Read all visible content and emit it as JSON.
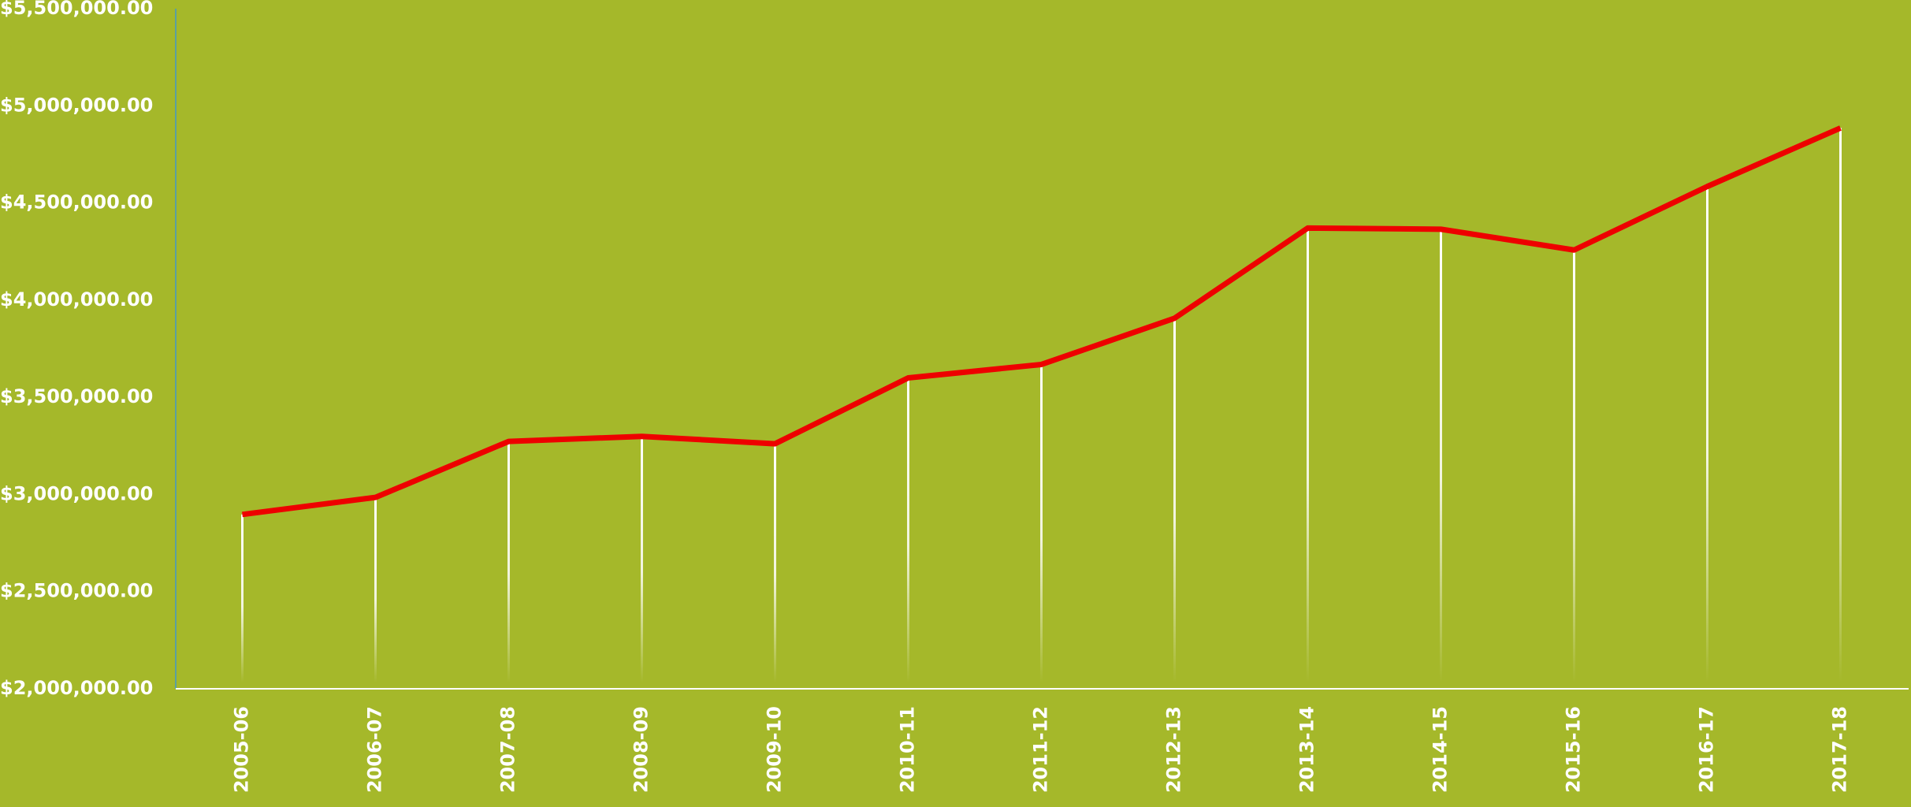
{
  "chart_data": {
    "type": "line",
    "categories": [
      "2005-06",
      "2006-07",
      "2007-08",
      "2008-09",
      "2009-10",
      "2010-11",
      "2011-12",
      "2012-13",
      "2013-14",
      "2014-15",
      "2015-16",
      "2016-17",
      "2017-18"
    ],
    "series": [
      {
        "color": "#ee0000",
        "values": [
          2897000,
          2985000,
          3273000,
          3299000,
          3261000,
          3600000,
          3669000,
          3907000,
          4371000,
          4365000,
          4258000,
          4585000,
          4886000
        ]
      }
    ],
    "ylim": [
      2000000,
      5500000
    ],
    "yticks": [
      {
        "value": 2000000,
        "label": "$2,000,000.00"
      },
      {
        "value": 2500000,
        "label": "$2,500,000.00"
      },
      {
        "value": 3000000,
        "label": "$3,000,000.00"
      },
      {
        "value": 3500000,
        "label": "$3,500,000.00"
      },
      {
        "value": 4000000,
        "label": "$4,000,000.00"
      },
      {
        "value": 4500000,
        "label": "$4,500,000.00"
      },
      {
        "value": 5000000,
        "label": "$5,000,000.00"
      },
      {
        "value": 5500000,
        "label": "$5,500,000.00"
      }
    ],
    "grid": false
  }
}
